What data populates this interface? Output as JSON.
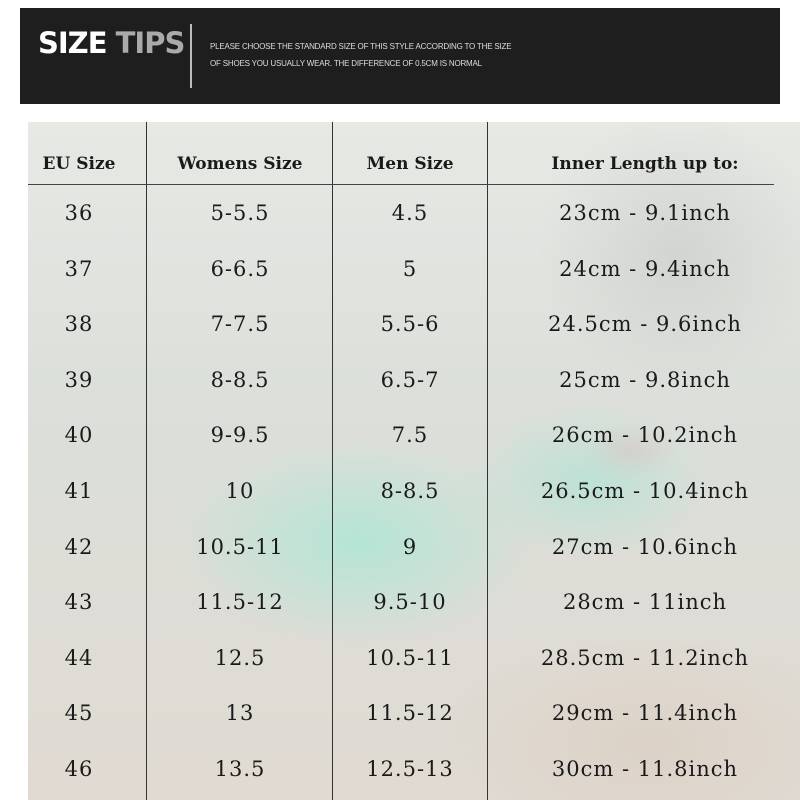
{
  "banner": {
    "title_part1": "SIZE",
    "title_part2": "TIPS",
    "tips_line1": "PLEASE CHOOSE THE STANDARD SIZE OF THIS STYLE ACCORDING TO THE SIZE",
    "tips_line2": "OF SHOES YOU USUALLY WEAR. THE DIFFERENCE OF 0.5CM IS NORMAL"
  },
  "table": {
    "headers": [
      "EU Size",
      "Womens Size",
      "Men Size",
      "Inner Length up to:"
    ],
    "rows": [
      [
        "36",
        "5-5.5",
        "4.5",
        "23cm - 9.1inch"
      ],
      [
        "37",
        "6-6.5",
        "5",
        "24cm - 9.4inch"
      ],
      [
        "38",
        "7-7.5",
        "5.5-6",
        "24.5cm - 9.6inch"
      ],
      [
        "39",
        "8-8.5",
        "6.5-7",
        "25cm - 9.8inch"
      ],
      [
        "40",
        "9-9.5",
        "7.5",
        "26cm - 10.2inch"
      ],
      [
        "41",
        "10",
        "8-8.5",
        "26.5cm - 10.4inch"
      ],
      [
        "42",
        "10.5-11",
        "9",
        "27cm - 10.6inch"
      ],
      [
        "43",
        "11.5-12",
        "9.5-10",
        "28cm - 11inch"
      ],
      [
        "44",
        "12.5",
        "10.5-11",
        "28.5cm - 11.2inch"
      ],
      [
        "45",
        "13",
        "11.5-12",
        "29cm - 11.4inch"
      ],
      [
        "46",
        "13.5",
        "12.5-13",
        "30cm - 11.8inch"
      ]
    ]
  }
}
